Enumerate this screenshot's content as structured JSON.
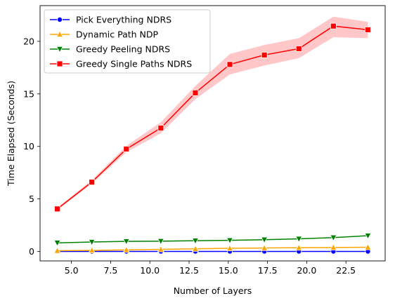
{
  "chart_data": {
    "type": "line",
    "title": "",
    "xlabel": "Number of Layers",
    "ylabel": "Time Elapsed (Seconds)",
    "xlim": [
      3.0,
      25.0
    ],
    "ylim": [
      -0.9,
      23.4
    ],
    "xticks": [
      5.0,
      7.5,
      10.0,
      12.5,
      15.0,
      17.5,
      20.0,
      22.5
    ],
    "xtick_labels": [
      "5.0",
      "7.5",
      "10.0",
      "12.5",
      "15.0",
      "17.5",
      "20.0",
      "22.5"
    ],
    "yticks": [
      0,
      5,
      10,
      15,
      20
    ],
    "ytick_labels": [
      "0",
      "5",
      "10",
      "15",
      "20"
    ],
    "grid": false,
    "legend_position": "top-left",
    "x": [
      4.1,
      6.3,
      8.5,
      10.7,
      12.9,
      15.1,
      17.3,
      19.5,
      21.7,
      23.9
    ],
    "series": [
      {
        "name": "Pick Everything NDRS",
        "color": "#0000ff",
        "marker": "circle",
        "values": [
          0.0,
          0.0,
          0.0,
          0.0,
          0.0,
          0.0,
          0.0,
          0.0,
          0.0,
          0.0
        ]
      },
      {
        "name": "Dynamic Path NDP",
        "color": "#ffa500",
        "marker": "triangle-up",
        "values": [
          0.07,
          0.1,
          0.15,
          0.2,
          0.25,
          0.3,
          0.33,
          0.36,
          0.38,
          0.4
        ]
      },
      {
        "name": "Greedy Peeling NDRS",
        "color": "#008000",
        "marker": "triangle-down",
        "values": [
          0.82,
          0.9,
          0.96,
          0.98,
          1.02,
          1.06,
          1.12,
          1.2,
          1.32,
          1.5
        ]
      },
      {
        "name": "Greedy Single Paths NDRS",
        "color": "#ff0000",
        "marker": "square",
        "values": [
          4.05,
          6.6,
          9.75,
          11.75,
          15.1,
          17.8,
          18.7,
          19.3,
          21.45,
          21.1
        ],
        "ci_lower": [
          3.95,
          6.45,
          9.45,
          11.25,
          14.5,
          16.85,
          17.7,
          18.4,
          20.4,
          20.3
        ],
        "ci_upper": [
          4.15,
          6.8,
          10.05,
          12.3,
          15.75,
          18.8,
          19.65,
          20.3,
          22.35,
          21.85
        ],
        "ci_color": "#ff0000"
      }
    ]
  }
}
